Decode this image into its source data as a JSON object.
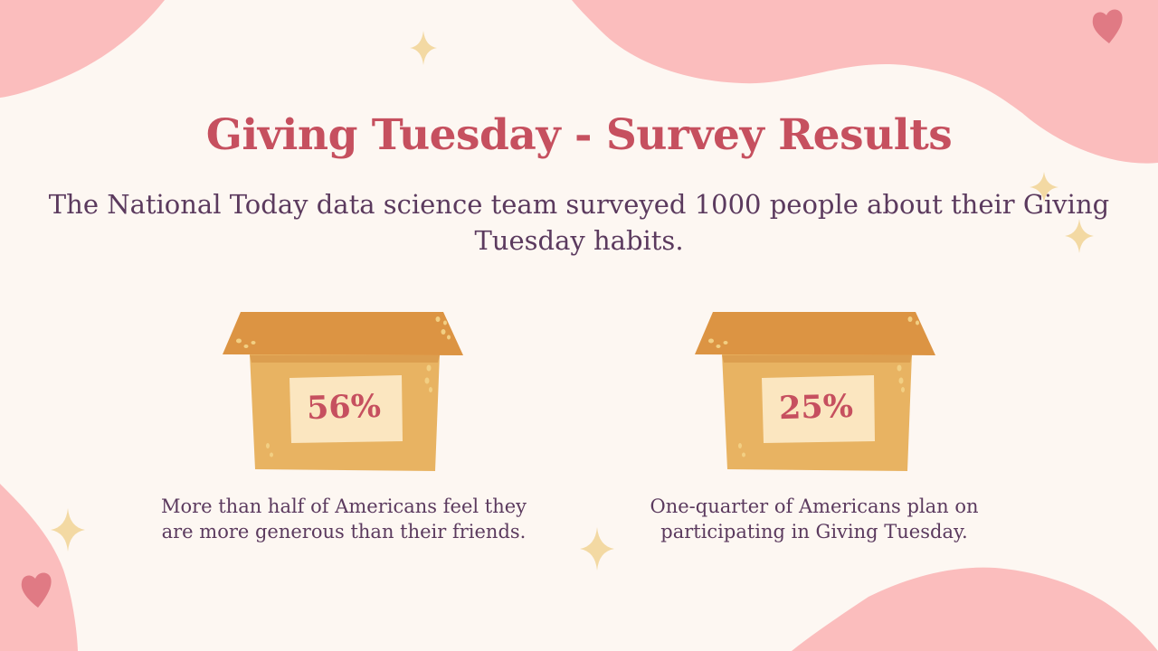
{
  "title": "Giving Tuesday - Survey Results",
  "subtitle": "The National Today data science team surveyed 1000 people about their Giving Tuesday habits.",
  "stats": [
    {
      "value": "56%",
      "caption": "More than half of Americans feel they are more generous than their friends."
    },
    {
      "value": "25%",
      "caption": "One-quarter of Americans plan on participating in Giving Tuesday."
    }
  ],
  "colors": {
    "background": "#fdf7f2",
    "blob_pink": "#fbbdbd",
    "heart": "#e07a84",
    "sparkle": "#f3d9a3",
    "title": "#c6505f",
    "body_text": "#5b3a5e",
    "box_lid": "#dc9443",
    "box_body": "#e8b362",
    "box_label": "#fbe6c0"
  },
  "icons": [
    "heart-icon",
    "sparkle-icon",
    "box-icon"
  ]
}
